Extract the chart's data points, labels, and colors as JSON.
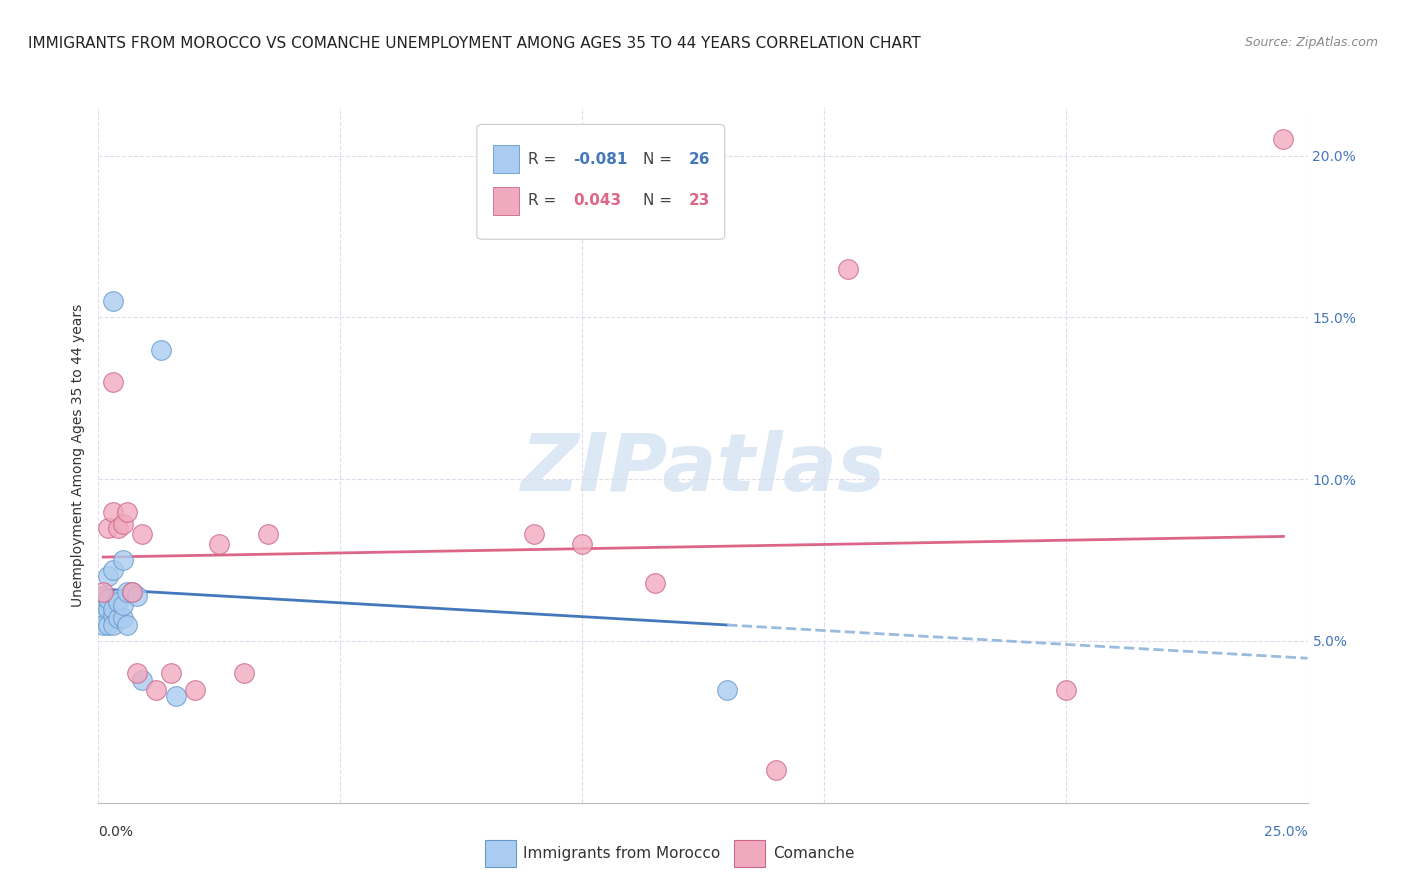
{
  "title": "IMMIGRANTS FROM MOROCCO VS COMANCHE UNEMPLOYMENT AMONG AGES 35 TO 44 YEARS CORRELATION CHART",
  "source": "Source: ZipAtlas.com",
  "ylabel": "Unemployment Among Ages 35 to 44 years",
  "xlim": [
    0.0,
    0.25
  ],
  "ylim": [
    0.0,
    0.215
  ],
  "yticks": [
    0.05,
    0.1,
    0.15,
    0.2
  ],
  "ytick_labels": [
    "5.0%",
    "10.0%",
    "15.0%",
    "20.0%"
  ],
  "xticks": [
    0.0,
    0.05,
    0.1,
    0.15,
    0.2,
    0.25
  ],
  "series1_label": "Immigrants from Morocco",
  "series2_label": "Comanche",
  "series1_color": "#aaccf0",
  "series2_color": "#f0aac0",
  "series1_edge_color": "#6699cc",
  "series2_edge_color": "#cc6688",
  "series1_R": -0.081,
  "series1_N": 26,
  "series2_R": 0.043,
  "series2_N": 23,
  "series1_x": [
    0.001,
    0.001,
    0.001,
    0.002,
    0.002,
    0.002,
    0.002,
    0.003,
    0.003,
    0.003,
    0.003,
    0.003,
    0.004,
    0.004,
    0.004,
    0.005,
    0.005,
    0.005,
    0.006,
    0.006,
    0.007,
    0.008,
    0.009,
    0.013,
    0.016,
    0.13
  ],
  "series1_y": [
    0.064,
    0.06,
    0.055,
    0.07,
    0.06,
    0.055,
    0.063,
    0.058,
    0.06,
    0.055,
    0.072,
    0.155,
    0.057,
    0.063,
    0.062,
    0.057,
    0.061,
    0.075,
    0.055,
    0.065,
    0.065,
    0.064,
    0.038,
    0.14,
    0.033,
    0.035
  ],
  "series2_x": [
    0.001,
    0.002,
    0.003,
    0.003,
    0.004,
    0.005,
    0.006,
    0.007,
    0.008,
    0.009,
    0.012,
    0.015,
    0.02,
    0.025,
    0.03,
    0.035,
    0.09,
    0.1,
    0.115,
    0.14,
    0.155,
    0.2,
    0.245
  ],
  "series2_y": [
    0.065,
    0.085,
    0.09,
    0.13,
    0.085,
    0.086,
    0.09,
    0.065,
    0.04,
    0.083,
    0.035,
    0.04,
    0.035,
    0.08,
    0.04,
    0.083,
    0.083,
    0.08,
    0.068,
    0.01,
    0.165,
    0.035,
    0.205
  ],
  "trend1_color": "#4477bb",
  "trend2_color": "#dd6688",
  "trend1_dashed_color": "#99bbdd",
  "watermark_color": "#dde8f5",
  "background_color": "#ffffff",
  "grid_color": "#ddddee",
  "title_fontsize": 11,
  "source_fontsize": 9,
  "axis_label_fontsize": 10,
  "tick_label_fontsize": 10
}
